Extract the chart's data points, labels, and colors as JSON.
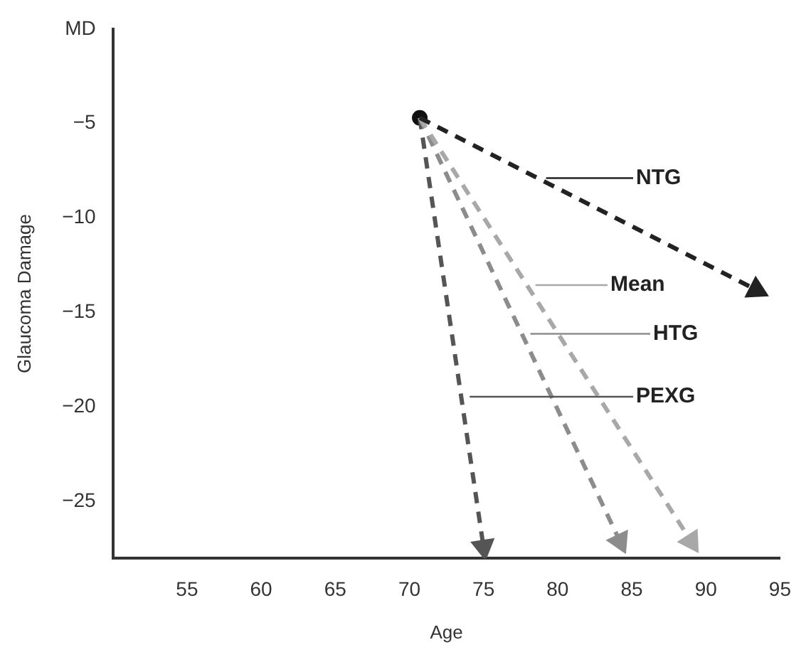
{
  "chart_data": {
    "type": "line",
    "xlabel": "Age",
    "ylabel": "Glaucoma Damage",
    "xlim": [
      50,
      95
    ],
    "xticks": [
      55,
      60,
      65,
      70,
      75,
      80,
      85,
      90,
      95
    ],
    "ylim": [
      -28,
      0
    ],
    "yticks": [
      {
        "value": 0,
        "label": "MD"
      },
      -5,
      -10,
      -15,
      -20,
      -25
    ],
    "grid": false,
    "legend": "right",
    "line_style": "dashed",
    "marker": "triangle",
    "series": [
      {
        "name": "NTG",
        "color": "#222222",
        "x": [
          70.7,
          93.4
        ],
        "values": [
          -4.7,
          -13.8
        ]
      },
      {
        "name": "Mean",
        "color": "#a8a8a8",
        "x": [
          70.7,
          89
        ],
        "values": [
          -4.7,
          -27.1
        ]
      },
      {
        "name": "HTG",
        "color": "#8c8c8c",
        "x": [
          70.7,
          84.2
        ],
        "values": [
          -4.7,
          -27.1
        ]
      },
      {
        "name": "PEXG",
        "color": "#555555",
        "x": [
          70.7,
          75
        ],
        "values": [
          -4.7,
          -27.4
        ]
      },
      {
        "type": "scatter",
        "marker": "circle",
        "color": "#111111",
        "x": [
          70.7
        ],
        "values": [
          -4.7
        ]
      }
    ]
  }
}
